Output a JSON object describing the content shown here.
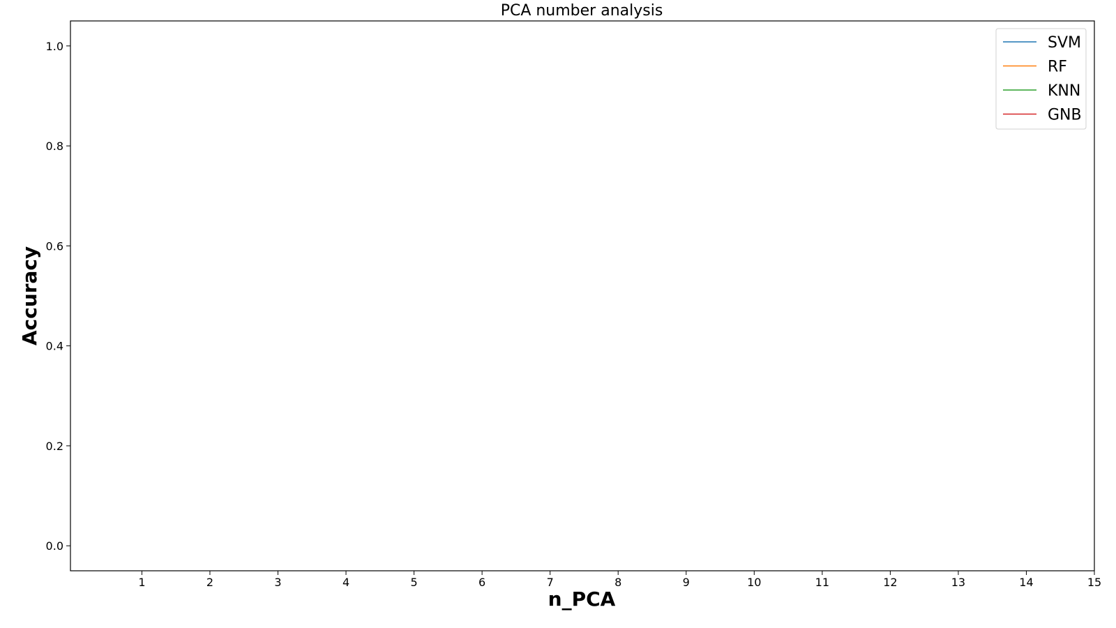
{
  "chart_data": {
    "type": "line",
    "title": "PCA number analysis",
    "xlabel": "n_PCA",
    "ylabel": "Accuracy",
    "xlim": [
      -0.05,
      15
    ],
    "ylim": [
      -0.05,
      1.05
    ],
    "x_ticks": [
      1,
      2,
      3,
      4,
      5,
      6,
      7,
      8,
      9,
      10,
      11,
      12,
      13,
      14,
      15
    ],
    "y_ticks": [
      0.0,
      0.2,
      0.4,
      0.6,
      0.8,
      1.0
    ],
    "y_tick_labels": [
      "0.0",
      "0.2",
      "0.4",
      "0.6",
      "0.8",
      "1.0"
    ],
    "grid": false,
    "legend_position": "top-right",
    "series": [
      {
        "name": "SVM",
        "color": "#1f77b4",
        "x": [],
        "values": []
      },
      {
        "name": "RF",
        "color": "#ff7f0e",
        "x": [],
        "values": []
      },
      {
        "name": "KNN",
        "color": "#2ca02c",
        "x": [],
        "values": []
      },
      {
        "name": "GNB",
        "color": "#d62728",
        "x": [],
        "values": []
      }
    ]
  }
}
